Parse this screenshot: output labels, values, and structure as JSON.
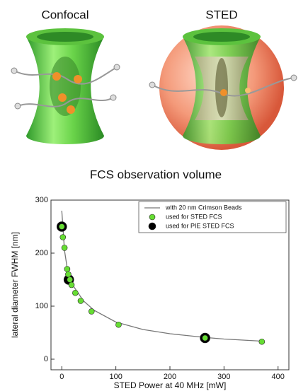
{
  "illustration": {
    "labels": [
      "Confocal",
      "STED"
    ]
  },
  "chart_data": {
    "type": "scatter",
    "title": "FCS observation volume",
    "x_label": "STED Power at 40 MHz [mW]",
    "y_label": "lateral diameter FWHM [nm]",
    "xlim": [
      -20,
      420
    ],
    "ylim": [
      -20,
      300
    ],
    "xticks": [
      0,
      100,
      200,
      300,
      400
    ],
    "yticks": [
      0,
      100,
      200,
      300
    ],
    "legend": "top-right",
    "series": [
      {
        "name": "with 20 nm Crimson Beads",
        "style": "line",
        "color": "#777777",
        "x": [
          0,
          5,
          10,
          20,
          40,
          60,
          100,
          150,
          200,
          265,
          300,
          370
        ],
        "values": [
          280,
          205,
          172,
          140,
          110,
          92,
          70,
          56,
          48,
          41,
          38,
          34
        ]
      },
      {
        "name": "used for STED FCS",
        "style": "marker",
        "color": "#66dd33",
        "size": 4,
        "x": [
          0,
          2,
          5,
          10,
          12,
          15,
          18,
          25,
          35,
          55,
          105,
          265,
          370
        ],
        "values": [
          250,
          230,
          210,
          170,
          160,
          150,
          140,
          125,
          110,
          90,
          65,
          40,
          33
        ]
      },
      {
        "name": "used for PIE STED FCS",
        "style": "marker",
        "color": "#000000",
        "size": 7,
        "x": [
          0,
          13,
          265
        ],
        "values": [
          250,
          150,
          40
        ]
      }
    ]
  }
}
